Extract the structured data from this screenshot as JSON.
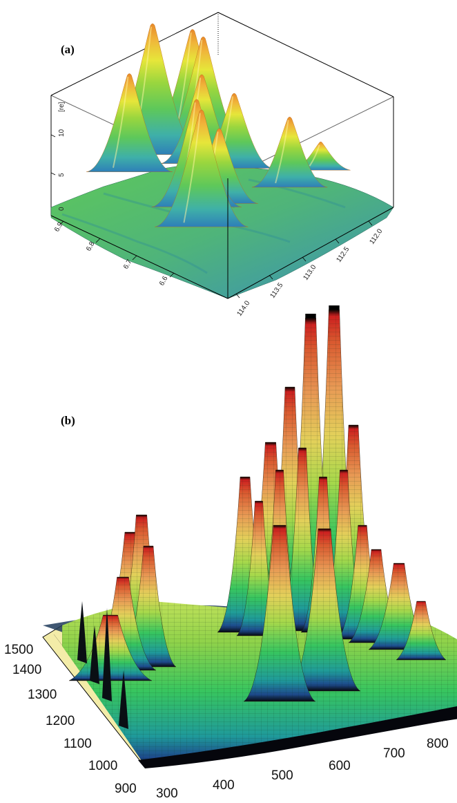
{
  "chart_data": [
    {
      "panel_label": "(a)",
      "type": "surface3d",
      "z_unit_label": "[re]",
      "z_ticks": [
        "10",
        "5",
        "0"
      ],
      "y_ticks": [
        "6.9",
        "6.8",
        "6.7",
        "6.6"
      ],
      "x_ticks": [
        "114.0",
        "113.5",
        "113.0",
        "112.5",
        "112.0"
      ],
      "grid": false,
      "colormap": [
        "#2e7fb8",
        "#3fb0a8",
        "#5ec85a",
        "#9ad63e",
        "#e6e63a",
        "#f0b43a",
        "#e88a2a"
      ],
      "peaks": [
        {
          "x": 113.75,
          "y": 6.68,
          "z": 12.5
        },
        {
          "x": 113.05,
          "y": 6.9,
          "z": 14.0
        },
        {
          "x": 112.7,
          "y": 6.84,
          "z": 12.5
        },
        {
          "x": 112.6,
          "y": 6.66,
          "z": 7.5
        },
        {
          "x": 113.5,
          "y": 6.73,
          "z": 11.5
        },
        {
          "x": 112.85,
          "y": 6.82,
          "z": 9.5
        },
        {
          "x": 113.45,
          "y": 6.89,
          "z": 10.5
        },
        {
          "x": 112.7,
          "y": 6.77,
          "z": 8.0
        },
        {
          "x": 113.3,
          "y": 6.71,
          "z": 8.0
        },
        {
          "x": 112.6,
          "y": 6.88,
          "z": 12.0
        },
        {
          "x": 112.15,
          "y": 6.66,
          "z": 3.0
        }
      ]
    },
    {
      "panel_label": "(b)",
      "type": "surface3d",
      "x_ticks": [
        "300",
        "400",
        "500",
        "600",
        "700",
        "800"
      ],
      "y_ticks": [
        "900",
        "1000",
        "1100",
        "1200",
        "1300",
        "1400",
        "1500"
      ],
      "grid": false,
      "colormap": [
        "#06070e",
        "#1d4a8c",
        "#1f9a9a",
        "#37c55f",
        "#a6d84b",
        "#e3d05a",
        "#e89a55",
        "#d9582f",
        "#cc1f1f",
        "#000000"
      ]
    }
  ]
}
